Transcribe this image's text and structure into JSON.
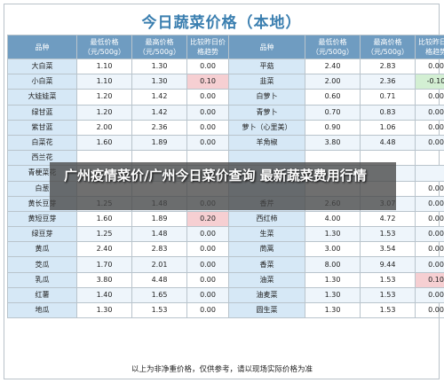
{
  "title": "今日蔬菜价格（本地）",
  "headers": [
    "品种",
    "最低价格（元/500g）",
    "最高价格（元/500g）",
    "比较昨日价格趋势",
    "品种",
    "最低价格（元/500g）",
    "最高价格（元/500g）",
    "比较昨日价格趋势"
  ],
  "rows": [
    [
      "大白菜",
      "1.10",
      "1.30",
      "0.00",
      "平菇",
      "2.40",
      "2.83",
      "0.00"
    ],
    [
      "小白菜",
      "1.10",
      "1.30",
      "0.10",
      "韭菜",
      "2.00",
      "2.36",
      "-0.10"
    ],
    [
      "大娃娃菜",
      "1.20",
      "1.42",
      "0.00",
      "白萝卜",
      "0.60",
      "0.71",
      "0.00"
    ],
    [
      "绿甘蓝",
      "1.20",
      "1.42",
      "0.00",
      "青萝卜",
      "0.70",
      "0.83",
      "0.00"
    ],
    [
      "紫甘蓝",
      "2.00",
      "2.36",
      "0.00",
      "萝卜（心里美）",
      "0.90",
      "1.06",
      "0.00"
    ],
    [
      "白菜花",
      "1.60",
      "1.89",
      "0.00",
      "羊角椒",
      "3.80",
      "4.48",
      "0.00"
    ],
    [
      "西兰花",
      "",
      "",
      "",
      "",
      "",
      "",
      ""
    ],
    [
      "青梗菜花",
      "",
      "",
      "",
      "",
      "",
      "",
      ""
    ],
    [
      "白葱",
      "",
      "",
      "",
      "",
      "",
      "",
      "0.00"
    ],
    [
      "黄长豆芽",
      "1.25",
      "1.48",
      "0.00",
      "香芹",
      "2.60",
      "3.07",
      "0.00"
    ],
    [
      "黄短豆芽",
      "1.60",
      "1.89",
      "0.20",
      "西红柿",
      "4.00",
      "4.72",
      "0.00"
    ],
    [
      "绿豆芽",
      "1.25",
      "1.48",
      "0.00",
      "生菜",
      "1.30",
      "1.53",
      "0.00"
    ],
    [
      "黄瓜",
      "2.40",
      "2.83",
      "0.00",
      "茼蒿",
      "3.00",
      "3.54",
      "0.00"
    ],
    [
      "茭瓜",
      "1.70",
      "2.01",
      "0.00",
      "香菜",
      "8.00",
      "9.44",
      "0.00"
    ],
    [
      "乳瓜",
      "3.80",
      "4.48",
      "0.00",
      "油菜",
      "1.30",
      "1.53",
      "0.10"
    ],
    [
      "红薯",
      "1.40",
      "1.65",
      "0.00",
      "油麦菜",
      "1.30",
      "1.53",
      "0.00"
    ],
    [
      "地瓜",
      "1.30",
      "1.53",
      "0.00",
      "圆生菜",
      "1.30",
      "1.53",
      "0.00"
    ]
  ],
  "highlights": {
    "red": [
      [
        1,
        3
      ],
      [
        10,
        3
      ],
      [
        14,
        7
      ]
    ],
    "green": [
      [
        1,
        7
      ]
    ]
  },
  "colors": {
    "header": "#6f9cc1",
    "title": "#3b7fb0",
    "name_cell": "#d6e8f6",
    "red": "#f6cfd2",
    "green": "#d3efd3"
  },
  "overlay_text": "广州疫情菜价/广州今日菜价查询 最新蔬菜费用行情",
  "footer": "以上为非净重价格，仅供参考，请以现场实际价格为准"
}
